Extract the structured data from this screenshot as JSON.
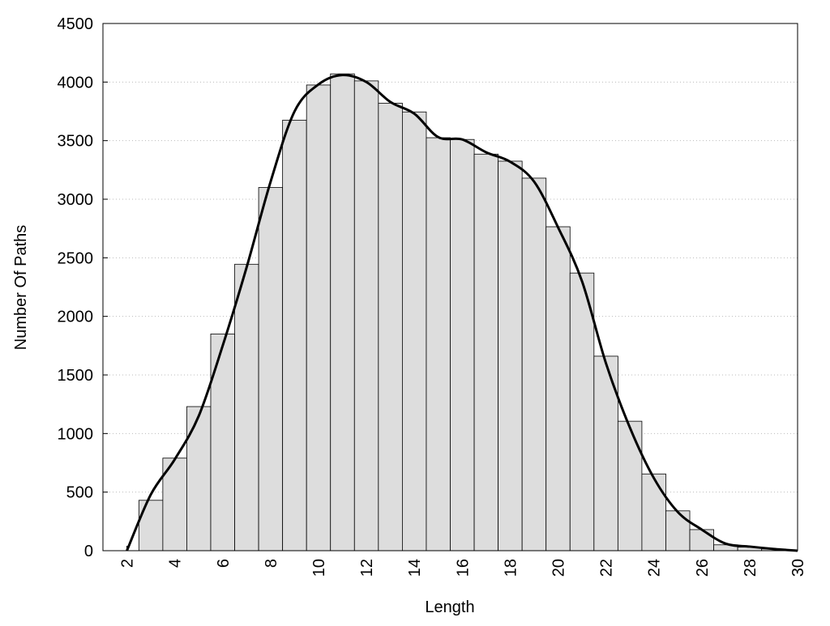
{
  "chart_data": {
    "type": "histogram",
    "xlabel": "Length",
    "ylabel": "Number Of Paths",
    "bins": [
      2.5,
      3.5,
      4.5,
      5.5,
      6.5,
      7.5,
      8.5,
      9.5,
      10.5,
      11.5,
      12.5,
      13.5,
      14.5,
      15.5,
      16.5,
      17.5,
      18.5,
      19.5,
      20.5,
      21.5,
      22.5,
      23.5,
      24.5,
      25.5,
      26.5,
      27.5,
      28.5,
      29.5
    ],
    "counts": [
      430,
      790,
      1230,
      1850,
      2445,
      3100,
      3675,
      3975,
      4070,
      4010,
      3820,
      3745,
      3525,
      3510,
      3385,
      3325,
      3180,
      2765,
      2370,
      1660,
      1105,
      655,
      340,
      180,
      50,
      30,
      15
    ],
    "color": "#dddddd",
    "curve": {
      "color": "#000000",
      "x": [
        2,
        3,
        4,
        5,
        6,
        7,
        8,
        9,
        10,
        11,
        12,
        13,
        14,
        15,
        16,
        17,
        18,
        19,
        20,
        21,
        22,
        23,
        24,
        25,
        26,
        27,
        28,
        29,
        30
      ],
      "values": [
        0,
        480,
        780,
        1150,
        1750,
        2420,
        3150,
        3750,
        3980,
        4060,
        4000,
        3830,
        3730,
        3530,
        3510,
        3400,
        3320,
        3150,
        2760,
        2300,
        1600,
        1050,
        620,
        330,
        180,
        60,
        35,
        15,
        0
      ]
    },
    "xlim": [
      1,
      30
    ],
    "ylim": [
      0,
      4500
    ],
    "xticks": [
      2,
      4,
      6,
      8,
      10,
      12,
      14,
      16,
      18,
      20,
      22,
      24,
      26,
      28,
      30
    ],
    "yticks": [
      0,
      500,
      1000,
      1500,
      2000,
      2500,
      3000,
      3500,
      4000,
      4500
    ],
    "grid": true
  }
}
